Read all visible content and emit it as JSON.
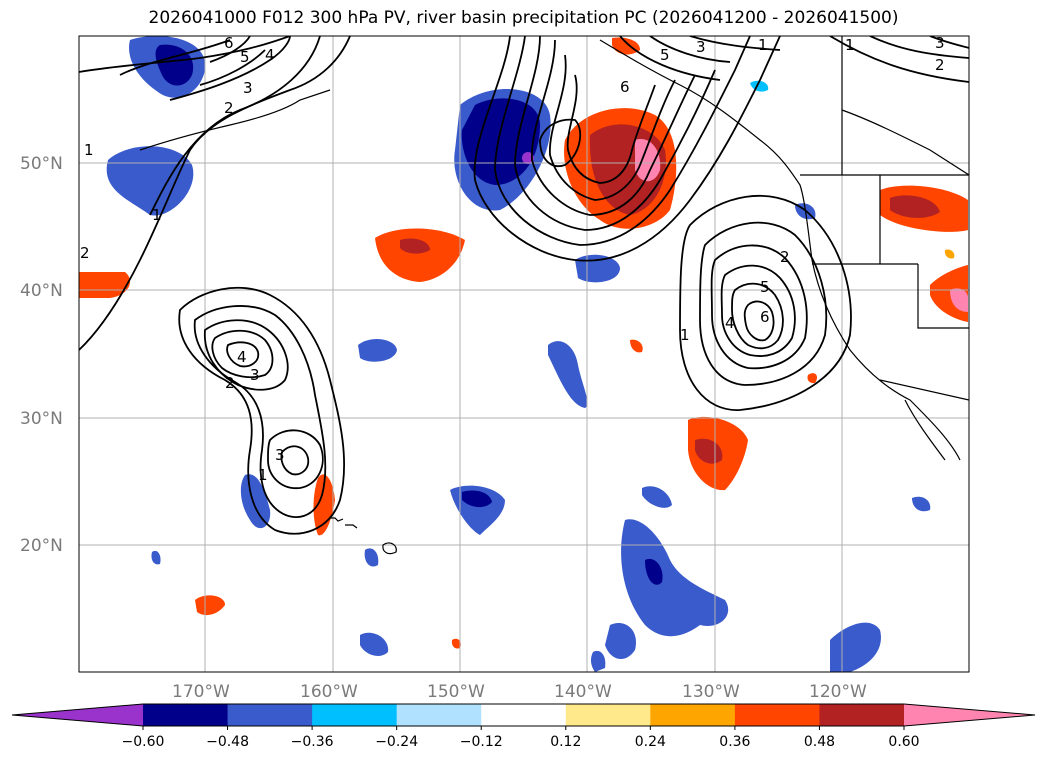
{
  "title": "2026041000 F012 300 hPa PV, river basin precipitation PC (2026041200 - 2026041500)",
  "map": {
    "lat_labels": [
      "50°N",
      "40°N",
      "30°N",
      "20°N"
    ],
    "lon_labels": [
      "170°W",
      "160°W",
      "150°W",
      "140°W",
      "130°W",
      "120°W"
    ],
    "lat_range": [
      10,
      59
    ],
    "lon_range": [
      -180,
      -110
    ],
    "pv_contour_labels": [
      "1",
      "2",
      "3",
      "4",
      "5",
      "6"
    ]
  },
  "colorbar": {
    "ticks": [
      "−0.60",
      "−0.48",
      "−0.36",
      "−0.24",
      "−0.12",
      "0.12",
      "0.24",
      "0.36",
      "0.48",
      "0.60"
    ],
    "colors": [
      "#9933cc",
      "#00008b",
      "#3a5bcc",
      "#00bfff",
      "#b0e2ff",
      "#ffffff",
      "#ffe98a",
      "#ffa500",
      "#ff4500",
      "#b22222",
      "#ff85b0"
    ]
  },
  "colors": {
    "grid": "#b0b0b0",
    "contour": "#000000",
    "coast": "#000000"
  }
}
